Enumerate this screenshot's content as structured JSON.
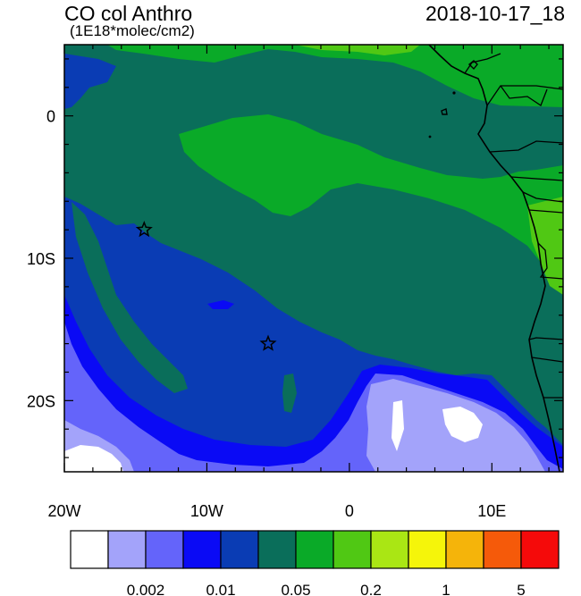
{
  "title": "CO col Anthro",
  "subtitle": "(1E18*molec/cm2)",
  "datetime": "2018-10-17_18",
  "map": {
    "lon_range": [
      -20,
      15
    ],
    "lat_range": [
      -25,
      5
    ],
    "x_tick_labels": [
      "20W",
      "10W",
      "0",
      "10E"
    ],
    "y_tick_labels": [
      "0",
      "10S",
      "20S"
    ],
    "markers": [
      {
        "name": "star-marker-ascension",
        "lon": -14.4,
        "lat": -8.0
      },
      {
        "name": "star-marker-st-helena",
        "lon": -5.7,
        "lat": -16.0
      }
    ]
  },
  "colorbar": {
    "colors": [
      "#ffffff",
      "#a3a3fa",
      "#6464fa",
      "#0a0af5",
      "#0a3cb4",
      "#0a6e5a",
      "#0aaa28",
      "#50c814",
      "#aae614",
      "#f5f50a",
      "#f5b40a",
      "#f55a0a",
      "#f50a0a"
    ],
    "labels": [
      "0.002",
      "0.01",
      "0.05",
      "0.2",
      "1",
      "5"
    ]
  }
}
